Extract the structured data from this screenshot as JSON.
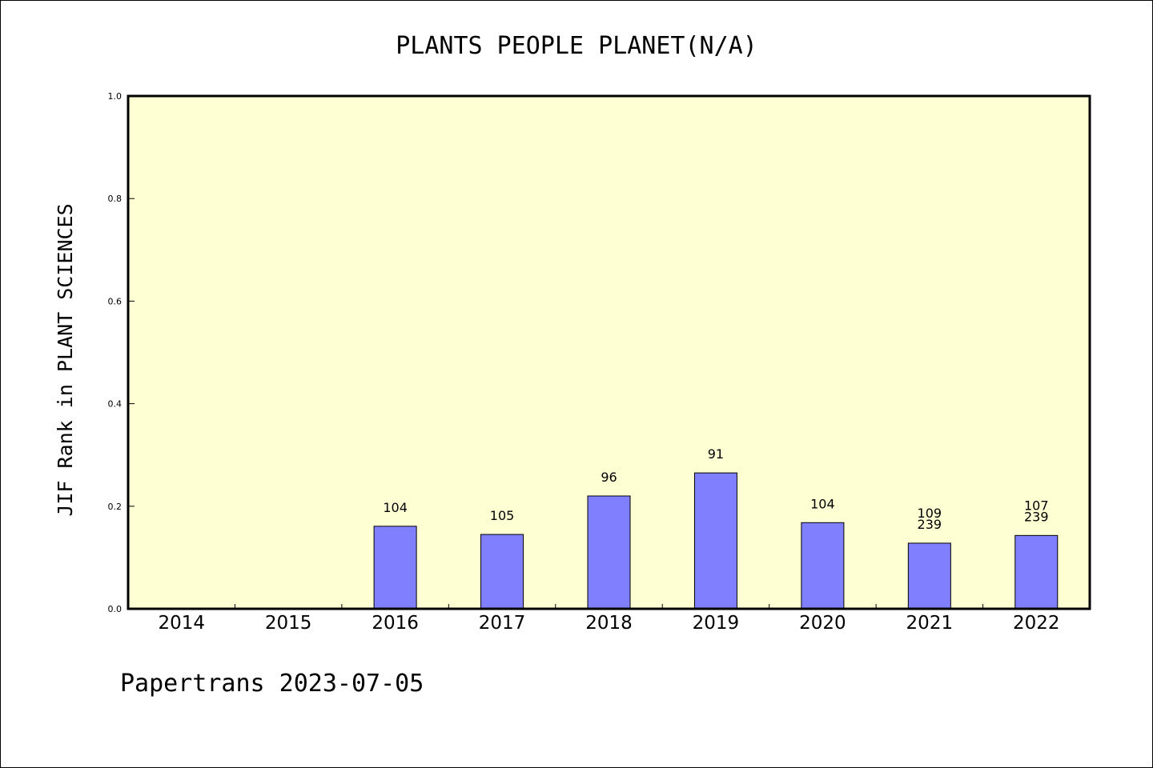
{
  "chart_data": {
    "type": "bar",
    "title": "PLANTS PEOPLE PLANET(N/A)",
    "ylabel": "JIF Rank in PLANT SCIENCES",
    "xlabel": "",
    "ylim": [
      0,
      1.0
    ],
    "yticks": [
      "0.0",
      "0.2",
      "0.4",
      "0.6",
      "0.8",
      "1.0"
    ],
    "categories": [
      "2014",
      "2015",
      "2016",
      "2017",
      "2018",
      "2019",
      "2020",
      "2021",
      "2022"
    ],
    "values": [
      null,
      null,
      0.161,
      0.145,
      0.22,
      0.265,
      0.168,
      0.128,
      0.143
    ],
    "data_labels": [
      null,
      null,
      [
        "104"
      ],
      [
        "105"
      ],
      [
        "96"
      ],
      [
        "91"
      ],
      [
        "104"
      ],
      [
        "109",
        "239"
      ],
      [
        "107",
        "239"
      ]
    ],
    "grid": false,
    "colors": {
      "plot_bg": "#ffffd4",
      "bar": "#8080ff",
      "bar_edge": "#000000"
    }
  },
  "footer": "Papertrans 2023-07-05"
}
